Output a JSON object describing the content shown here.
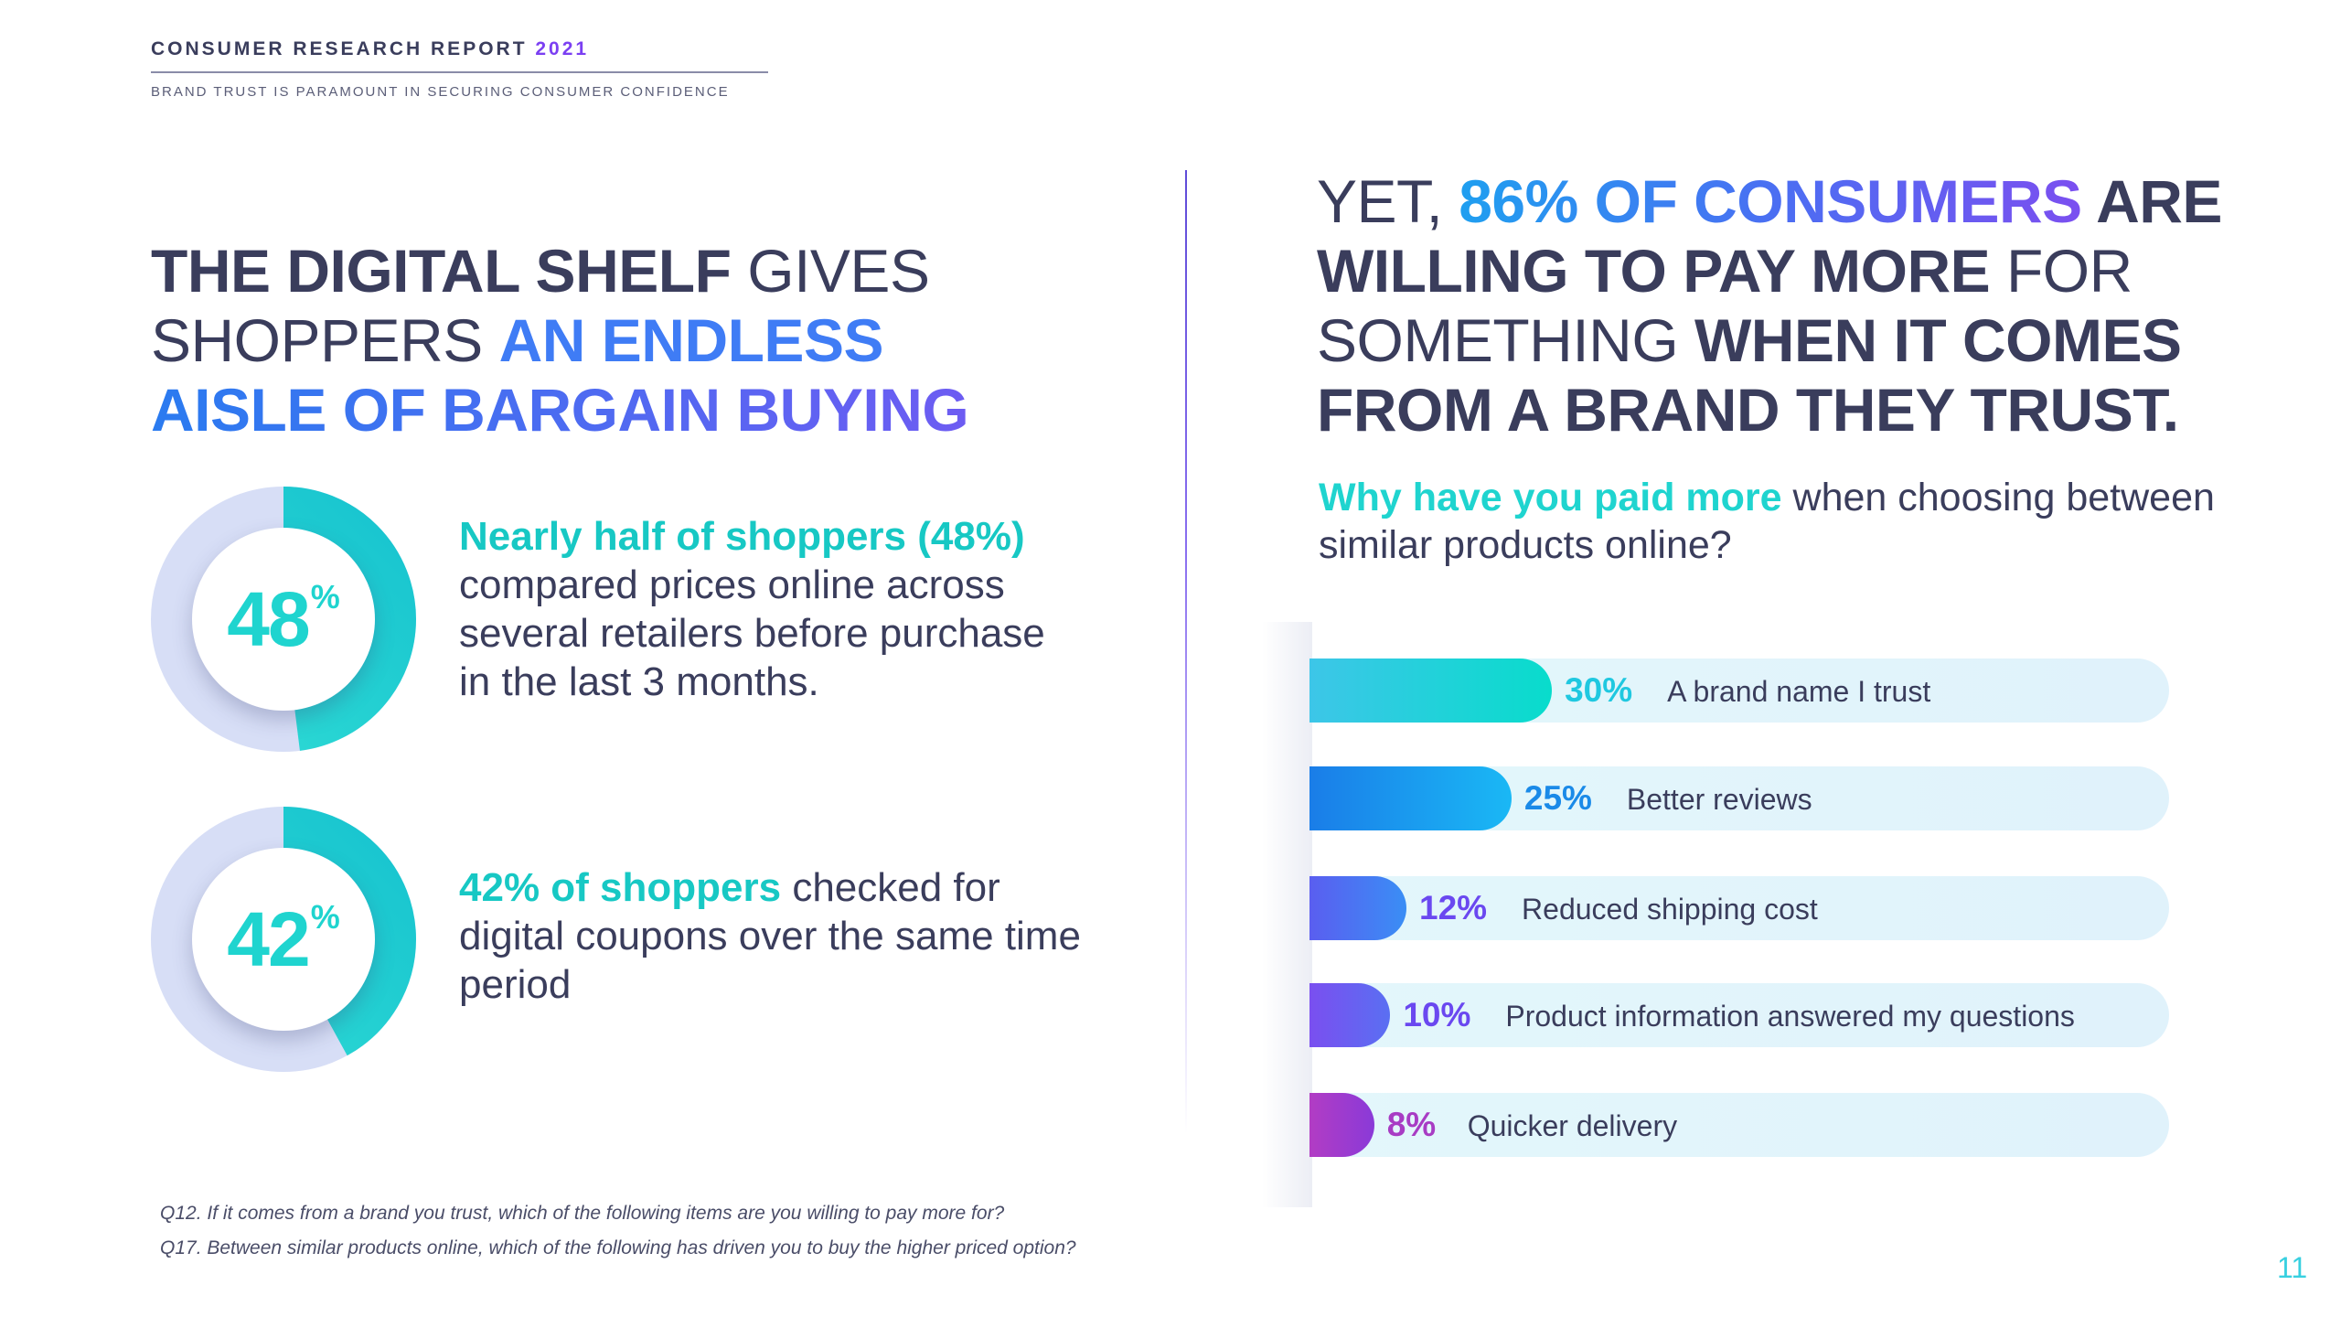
{
  "header": {
    "title": "CONSUMER RESEARCH REPORT",
    "year": "2021",
    "subtitle": "BRAND TRUST IS PARAMOUNT IN SECURING CONSUMER CONFIDENCE"
  },
  "left": {
    "headline": {
      "p1": "THE DIGITAL SHELF",
      "p2": " GIVES SHOPPERS ",
      "p3": "AN ENDLESS",
      "p4": "AISLE OF BARGAIN BUYING"
    },
    "stats": [
      {
        "value": 48,
        "number": "48",
        "symbol": "%",
        "highlight": "Nearly half of shoppers (48%)",
        "text": " compared prices online across several retailers before purchase in the last 3 months."
      },
      {
        "value": 42,
        "number": "42",
        "symbol": "%",
        "highlight": "42% of shoppers",
        "text": " checked for digital coupons over the same time period"
      }
    ]
  },
  "right": {
    "headline": {
      "p1": "YET, ",
      "p2": "86% OF CONSUMERS",
      "p3": " ARE",
      "p4": "WILLING TO PAY MORE",
      "p5": " FOR SOMETHING ",
      "p6": "WHEN IT COMES FROM A BRAND THEY TRUST."
    },
    "question": {
      "highlight": "Why have you paid more",
      "text": " when choosing between similar products online?"
    }
  },
  "chart_data": {
    "type": "bar",
    "orientation": "horizontal",
    "categories": [
      "A brand name I trust",
      "Better reviews",
      "Reduced shipping cost",
      "Product information answered my questions",
      "Quicker delivery"
    ],
    "values": [
      30,
      25,
      12,
      10,
      8
    ],
    "value_labels": [
      "30",
      "25",
      "12",
      "10",
      "8"
    ],
    "unit": "%",
    "title": "Why have you paid more when choosing between similar products online?",
    "xlim": [
      0,
      100
    ],
    "colors": [
      "#1fd4cf",
      "#1aa2ec",
      "#4a6ff2",
      "#6a4ff0",
      "#a03cc8"
    ]
  },
  "notes": [
    "Q12. If it comes from a brand you trust, which of the following items are you willing to pay more for?",
    "Q17. Between similar products online, which of the following has driven you to buy the higher priced option?"
  ],
  "page_number": "11"
}
